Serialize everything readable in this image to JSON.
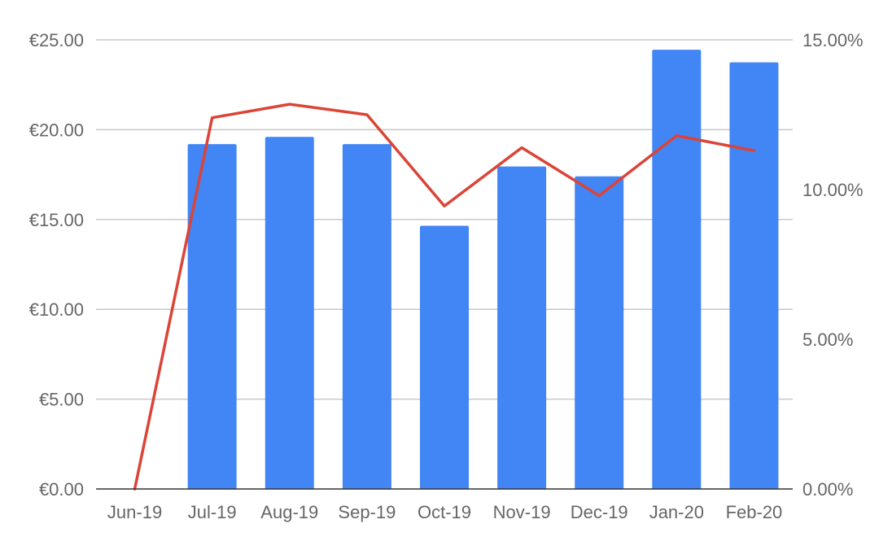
{
  "chart_data": {
    "type": "bar",
    "categories": [
      "Jun-19",
      "Jul-19",
      "Aug-19",
      "Sep-19",
      "Oct-19",
      "Nov-19",
      "Dec-19",
      "Jan-20",
      "Feb-20"
    ],
    "series": [
      {
        "type": "bar",
        "axis": "left",
        "color": "#4285f4",
        "values": [
          0,
          19.2,
          19.6,
          19.2,
          14.65,
          17.95,
          17.4,
          24.45,
          23.75
        ]
      },
      {
        "type": "line",
        "axis": "right",
        "color": "#db4437",
        "values": [
          0,
          12.4,
          12.85,
          12.5,
          9.45,
          11.4,
          9.8,
          11.8,
          11.3
        ]
      }
    ],
    "y_left": {
      "min": 0,
      "max": 25,
      "ticks": [
        0,
        5,
        10,
        15,
        20,
        25
      ],
      "tick_labels": [
        "€0.00",
        "€5.00",
        "€10.00",
        "€15.00",
        "€20.00",
        "€25.00"
      ]
    },
    "y_right": {
      "min": 0,
      "max": 15,
      "ticks": [
        0,
        5,
        10,
        15
      ],
      "tick_labels": [
        "0.00%",
        "5.00%",
        "10.00%",
        "15.00%"
      ]
    },
    "grid": true,
    "legend": "none"
  }
}
